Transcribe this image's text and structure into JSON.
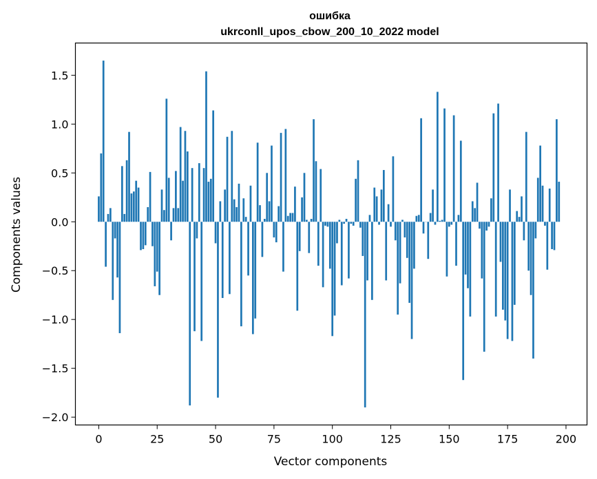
{
  "chart_data": {
    "type": "bar",
    "title_line1": "ошибка",
    "title_line2": "ukrconll_upos_cbow_200_10_2022 model",
    "xlabel": "Vector components",
    "ylabel": "Components values",
    "xlim": [
      -10,
      209
    ],
    "ylim": [
      -2.08,
      1.83
    ],
    "xticks": [
      0,
      25,
      50,
      75,
      100,
      125,
      150,
      175,
      200
    ],
    "xtick_labels": [
      "0",
      "25",
      "50",
      "75",
      "100",
      "125",
      "150",
      "175",
      "200"
    ],
    "yticks": [
      1.5,
      1.0,
      0.5,
      0.0,
      -0.5,
      -1.0,
      -1.5,
      -2.0
    ],
    "ytick_labels": [
      "1.5",
      "1.0",
      "0.5",
      "0.0",
      "−0.5",
      "−1.0",
      "−1.5",
      "−2.0"
    ],
    "bar_color": "#1f77b4",
    "grid": false,
    "values": [
      0.26,
      0.7,
      1.65,
      -0.46,
      0.08,
      0.14,
      -0.8,
      -0.17,
      -0.57,
      -1.14,
      0.57,
      0.08,
      0.63,
      0.92,
      0.29,
      0.31,
      0.42,
      0.35,
      -0.29,
      -0.28,
      -0.24,
      0.15,
      0.51,
      -0.25,
      -0.66,
      -0.51,
      -0.75,
      0.33,
      0.12,
      1.26,
      0.45,
      -0.19,
      0.14,
      0.52,
      0.14,
      0.97,
      0.42,
      0.93,
      0.72,
      -1.88,
      0.55,
      -1.12,
      -0.17,
      0.6,
      -1.22,
      0.55,
      1.54,
      0.41,
      0.44,
      1.14,
      -0.22,
      -1.8,
      0.21,
      -0.78,
      0.33,
      0.87,
      -0.74,
      0.93,
      0.23,
      0.15,
      0.39,
      -1.07,
      0.24,
      0.05,
      -0.55,
      0.37,
      -1.15,
      -0.99,
      0.81,
      0.17,
      -0.36,
      0.03,
      0.5,
      0.21,
      0.78,
      -0.16,
      -0.21,
      0.16,
      0.91,
      -0.51,
      0.95,
      0.06,
      0.09,
      0.09,
      0.36,
      -0.91,
      -0.3,
      0.25,
      0.5,
      0.02,
      -0.32,
      0.03,
      1.05,
      0.62,
      -0.45,
      0.54,
      -0.67,
      -0.04,
      -0.05,
      -0.48,
      -1.17,
      -0.96,
      -0.22,
      0.02,
      -0.65,
      -0.02,
      0.03,
      -0.58,
      -0.02,
      -0.04,
      0.44,
      0.63,
      -0.06,
      -0.35,
      -1.9,
      -0.6,
      0.07,
      -0.8,
      0.35,
      0.26,
      -0.03,
      0.33,
      0.53,
      -0.6,
      0.18,
      -0.05,
      0.67,
      -0.19,
      -0.95,
      -0.63,
      0.02,
      -0.16,
      -0.37,
      -0.83,
      -1.2,
      -0.48,
      0.06,
      0.07,
      1.06,
      -0.12,
      0.0,
      -0.38,
      0.09,
      0.33,
      -0.03,
      1.33,
      0.01,
      0.02,
      1.16,
      -0.56,
      -0.05,
      -0.03,
      1.09,
      -0.45,
      0.07,
      0.83,
      -1.62,
      -0.54,
      -0.68,
      -0.97,
      0.21,
      0.14,
      0.4,
      -0.07,
      -0.58,
      -1.33,
      -0.09,
      -0.05,
      0.24,
      1.11,
      -0.97,
      1.21,
      -0.41,
      -0.9,
      -1.01,
      -1.2,
      0.33,
      -1.22,
      -0.85,
      0.11,
      0.05,
      0.26,
      -0.19,
      0.92,
      -0.5,
      -0.75,
      -1.4,
      -0.17,
      0.45,
      0.78,
      0.37,
      -0.04,
      -0.49,
      0.34,
      -0.28,
      -0.29,
      1.05,
      0.41
    ]
  }
}
